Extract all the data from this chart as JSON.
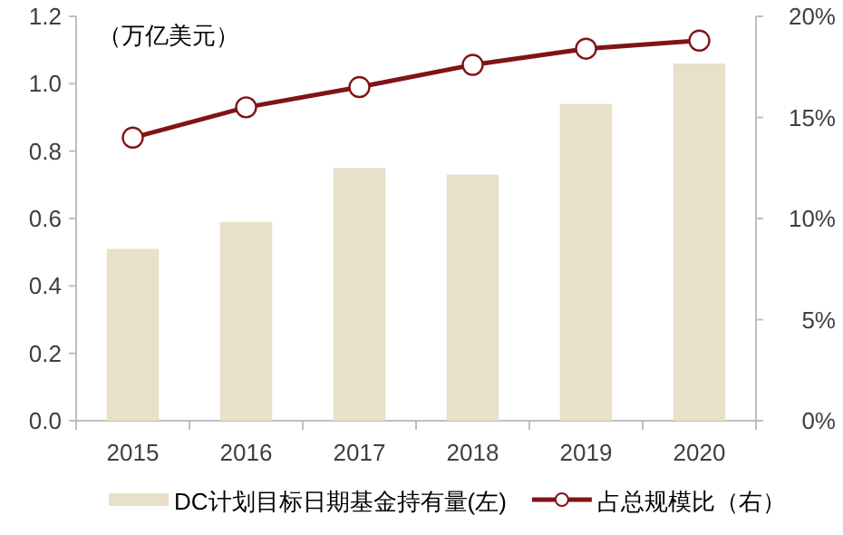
{
  "chart_data": {
    "type": "bar",
    "categories": [
      "2015",
      "2016",
      "2017",
      "2018",
      "2019",
      "2020"
    ],
    "series": [
      {
        "name": "DC计划目标日期基金持有量(左)",
        "color": "#e8e0c8",
        "values": [
          0.51,
          0.59,
          0.75,
          0.73,
          0.94,
          1.06
        ]
      },
      {
        "name": "占总规模比（右）",
        "type": "line",
        "axis": "y2",
        "color": "#7f1416",
        "marker": "circle",
        "values": [
          14.0,
          15.5,
          16.5,
          17.6,
          18.4,
          18.8
        ]
      }
    ],
    "ylim": [
      0,
      1.2
    ],
    "yticks": [
      {
        "value": 0,
        "label": "0.0"
      },
      {
        "value": 0.2,
        "label": "0.2"
      },
      {
        "value": 0.4,
        "label": "0.4"
      },
      {
        "value": 0.6,
        "label": "0.6"
      },
      {
        "value": 0.8,
        "label": "0.8"
      },
      {
        "value": 1.0,
        "label": "1.0"
      },
      {
        "value": 1.2,
        "label": "1.2"
      }
    ],
    "y2lim": [
      0,
      20
    ],
    "y2ticks": [
      {
        "value": 0,
        "label": "0%"
      },
      {
        "value": 5,
        "label": "5%"
      },
      {
        "value": 10,
        "label": "10%"
      },
      {
        "value": 15,
        "label": "15%"
      },
      {
        "value": 20,
        "label": "20%"
      }
    ],
    "legend": "bottom",
    "annotations": [
      "（万亿美元）"
    ]
  }
}
